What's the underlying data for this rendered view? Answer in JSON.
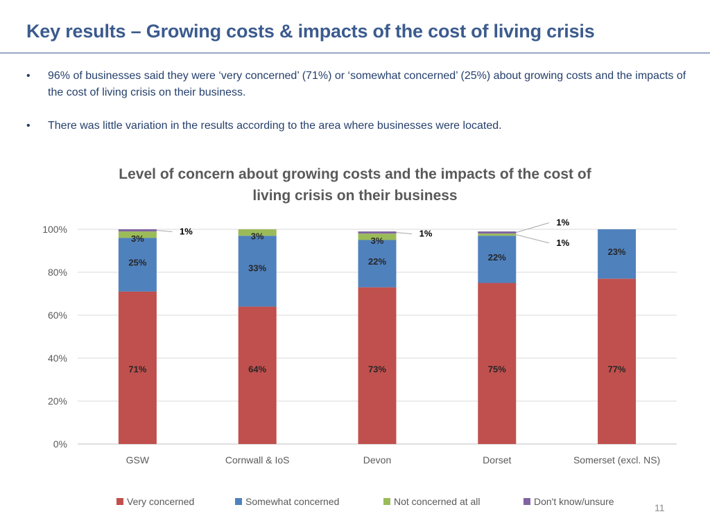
{
  "slide": {
    "title": "Key results – Growing costs & impacts of the cost of living crisis",
    "bullet_marker": "•",
    "bullets": [
      "96% of businesses said they were ‘very concerned’ (71%) or ‘somewhat concerned’ (25%) about growing costs and the impacts of the cost of living crisis on their business.",
      "There was little variation in the results according to the area where businesses were located."
    ],
    "page_number": "11"
  },
  "chart_data": {
    "type": "bar",
    "stacked": true,
    "title": "Level of concern about growing costs and the impacts of the cost of living crisis on their business",
    "categories": [
      "GSW",
      "Cornwall & IoS",
      "Devon",
      "Dorset",
      "Somerset (excl. NS)"
    ],
    "series": [
      {
        "name": "Very concerned",
        "color": "#c0504d",
        "values": [
          71,
          64,
          73,
          75,
          77
        ],
        "labels": [
          "71%",
          "64%",
          "73%",
          "75%",
          "77%"
        ]
      },
      {
        "name": "Somewhat concerned",
        "color": "#4f81bd",
        "values": [
          25,
          33,
          22,
          22,
          23
        ],
        "labels": [
          "25%",
          "33%",
          "22%",
          "22%",
          "23%"
        ]
      },
      {
        "name": "Not concerned at all",
        "color": "#9bbb59",
        "values": [
          3,
          3,
          3,
          1,
          0
        ],
        "labels": [
          "3%",
          "3%",
          "3%",
          "1%",
          ""
        ]
      },
      {
        "name": "Don't know/unsure",
        "color": "#8064a2",
        "values": [
          1,
          0,
          1,
          1,
          0
        ],
        "labels": [
          "1%",
          "",
          "1%",
          "1%",
          ""
        ]
      }
    ],
    "ylim": [
      0,
      100
    ],
    "yticks": [
      "0%",
      "20%",
      "40%",
      "60%",
      "80%",
      "100%"
    ],
    "grid": true,
    "legend": "bottom",
    "xlabel": "",
    "ylabel": ""
  }
}
